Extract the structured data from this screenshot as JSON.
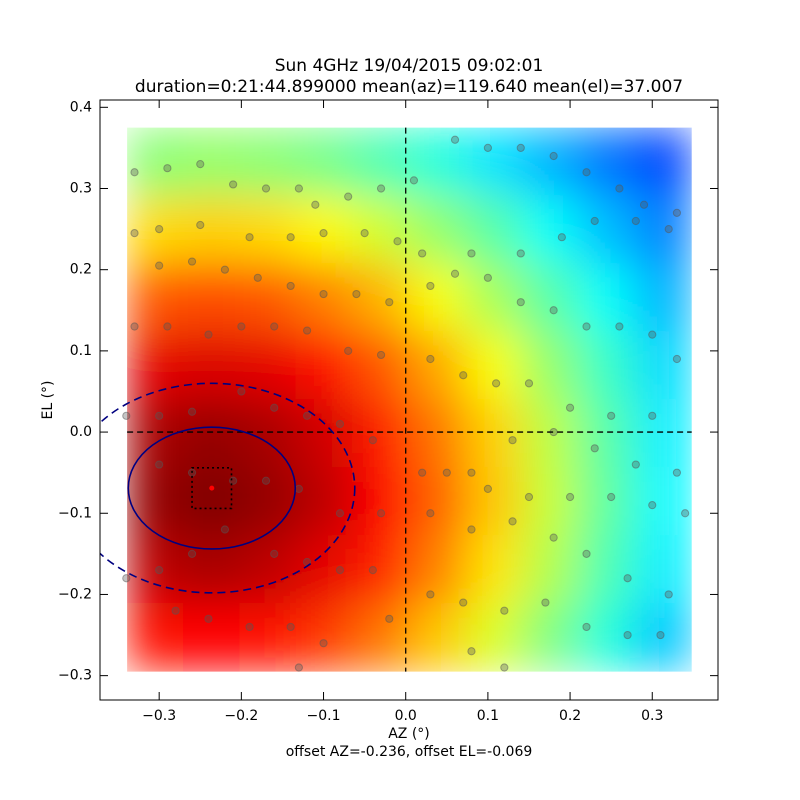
{
  "chart_data": {
    "type": "heatmap",
    "title": "Sun 4GHz 19/04/2015 09:02:01",
    "subtitle": "duration=0:21:44.899000 mean(az)=119.640 mean(el)=37.007",
    "x_label": "AZ (°)",
    "y_label": "EL (°)",
    "footnote": "offset AZ=-0.236, offset EL=-0.069",
    "xlim": [
      -0.372,
      0.38
    ],
    "ylim": [
      -0.33,
      0.409
    ],
    "xticks": [
      {
        "value": -0.3,
        "label": "−0.3"
      },
      {
        "value": -0.2,
        "label": "−0.2"
      },
      {
        "value": -0.1,
        "label": "−0.1"
      },
      {
        "value": 0,
        "label": "0.0"
      },
      0.1,
      0.2,
      0.3
    ],
    "yticks": [
      {
        "value": -0.3,
        "label": "−0.3"
      },
      {
        "value": -0.2,
        "label": "−0.2"
      },
      {
        "value": -0.1,
        "label": "−0.1"
      },
      {
        "value": 0,
        "label": "0.0"
      },
      0.1,
      0.2,
      0.3,
      0.4
    ],
    "heatmap": {
      "colormap": "jet",
      "extent": [
        -0.339,
        0.348,
        -0.295,
        0.375
      ],
      "z": [
        [
          0.51,
          0.52,
          0.51,
          0.49,
          0.45,
          0.41,
          0.35,
          0.3,
          0.24,
          0.19
        ],
        [
          0.66,
          0.67,
          0.66,
          0.63,
          0.58,
          0.52,
          0.46,
          0.38,
          0.31,
          0.25
        ],
        [
          0.79,
          0.8,
          0.79,
          0.75,
          0.7,
          0.62,
          0.54,
          0.46,
          0.38,
          0.3
        ],
        [
          0.9,
          0.91,
          0.9,
          0.86,
          0.79,
          0.71,
          0.62,
          0.52,
          0.43,
          0.34
        ],
        [
          0.96,
          0.98,
          0.96,
          0.92,
          0.85,
          0.76,
          0.67,
          0.56,
          0.46,
          0.36
        ],
        [
          0.98,
          1.0,
          0.98,
          0.94,
          0.87,
          0.78,
          0.68,
          0.57,
          0.47,
          0.37
        ],
        [
          0.94,
          0.96,
          0.94,
          0.9,
          0.84,
          0.75,
          0.65,
          0.55,
          0.45,
          0.36
        ],
        [
          0.86,
          0.87,
          0.86,
          0.82,
          0.76,
          0.68,
          0.59,
          0.5,
          0.41,
          0.32
        ]
      ]
    },
    "series": [
      {
        "type": "scatter",
        "color": "#555555",
        "x": [
          -0.33,
          -0.29,
          -0.25,
          -0.21,
          -0.17,
          -0.13,
          -0.11,
          -0.07,
          -0.03,
          0.01,
          0.06,
          0.1,
          0.14,
          0.18,
          0.22,
          0.26,
          0.29,
          0.33,
          -0.33,
          -0.3,
          -0.25,
          -0.19,
          -0.14,
          -0.1,
          -0.05,
          -0.01,
          0.02,
          0.08,
          0.14,
          0.19,
          0.23,
          0.28,
          0.32,
          -0.3,
          -0.26,
          -0.22,
          -0.18,
          -0.14,
          -0.1,
          -0.06,
          -0.02,
          0.03,
          0.06,
          0.1,
          0.14,
          0.18,
          0.22,
          0.26,
          0.3,
          0.33,
          -0.33,
          -0.29,
          -0.24,
          -0.2,
          -0.16,
          -0.12,
          -0.07,
          -0.03,
          0.03,
          0.07,
          0.11,
          0.15,
          0.2,
          0.25,
          0.3,
          -0.34,
          -0.3,
          -0.26,
          -0.2,
          -0.16,
          -0.12,
          -0.08,
          -0.04,
          0.02,
          0.08,
          0.13,
          0.18,
          0.23,
          0.28,
          0.33,
          -0.3,
          -0.26,
          -0.21,
          -0.17,
          -0.13,
          -0.08,
          -0.03,
          0.05,
          0.1,
          0.15,
          0.2,
          0.25,
          0.3,
          0.34,
          -0.34,
          -0.3,
          -0.26,
          -0.22,
          -0.16,
          -0.12,
          -0.08,
          -0.04,
          0.03,
          0.08,
          0.13,
          0.18,
          0.22,
          0.27,
          0.32,
          -0.28,
          -0.24,
          -0.19,
          -0.14,
          -0.1,
          -0.02,
          0.03,
          0.07,
          0.12,
          0.17,
          0.22,
          0.27,
          0.31,
          -0.13,
          0.08,
          0.12
        ],
        "y": [
          0.32,
          0.325,
          0.33,
          0.305,
          0.3,
          0.3,
          0.28,
          0.29,
          0.3,
          0.31,
          0.36,
          0.35,
          0.35,
          0.34,
          0.32,
          0.3,
          0.28,
          0.27,
          0.245,
          0.25,
          0.255,
          0.24,
          0.24,
          0.245,
          0.245,
          0.235,
          0.22,
          0.22,
          0.22,
          0.24,
          0.26,
          0.26,
          0.25,
          0.205,
          0.21,
          0.2,
          0.19,
          0.18,
          0.17,
          0.17,
          0.16,
          0.18,
          0.195,
          0.19,
          0.16,
          0.15,
          0.13,
          0.13,
          0.12,
          0.09,
          0.13,
          0.13,
          0.12,
          0.13,
          0.13,
          0.125,
          0.1,
          0.095,
          0.09,
          0.07,
          0.06,
          0.06,
          0.03,
          0.02,
          0.02,
          0.02,
          0.02,
          0.025,
          0.05,
          0.03,
          0.02,
          0.01,
          -0.01,
          -0.05,
          -0.05,
          -0.01,
          0.0,
          -0.02,
          -0.04,
          -0.05,
          -0.04,
          -0.05,
          -0.06,
          -0.06,
          -0.07,
          -0.1,
          -0.1,
          -0.05,
          -0.07,
          -0.08,
          -0.08,
          -0.08,
          -0.09,
          -0.1,
          -0.18,
          -0.17,
          -0.15,
          -0.12,
          -0.15,
          -0.16,
          -0.17,
          -0.17,
          -0.1,
          -0.12,
          -0.11,
          -0.13,
          -0.15,
          -0.18,
          -0.2,
          -0.22,
          -0.23,
          -0.24,
          -0.24,
          -0.26,
          -0.23,
          -0.2,
          -0.21,
          -0.22,
          -0.21,
          -0.24,
          -0.25,
          -0.25,
          -0.29,
          -0.27,
          -0.29
        ]
      }
    ],
    "reference_lines": {
      "x": 0,
      "y": 0
    },
    "beam": {
      "center": [
        -0.236,
        -0.069
      ],
      "color": "#000080",
      "center_color": "#ff0000",
      "shapes": [
        {
          "shape": "ellipse",
          "rx": 0.1016,
          "ry": 0.075,
          "style": "solid"
        },
        {
          "shape": "ellipse",
          "rx": 0.174,
          "ry": 0.129,
          "style": "dashed"
        },
        {
          "shape": "rect",
          "rx": 0.024,
          "ry": 0.025,
          "style": "dotted"
        }
      ]
    }
  }
}
